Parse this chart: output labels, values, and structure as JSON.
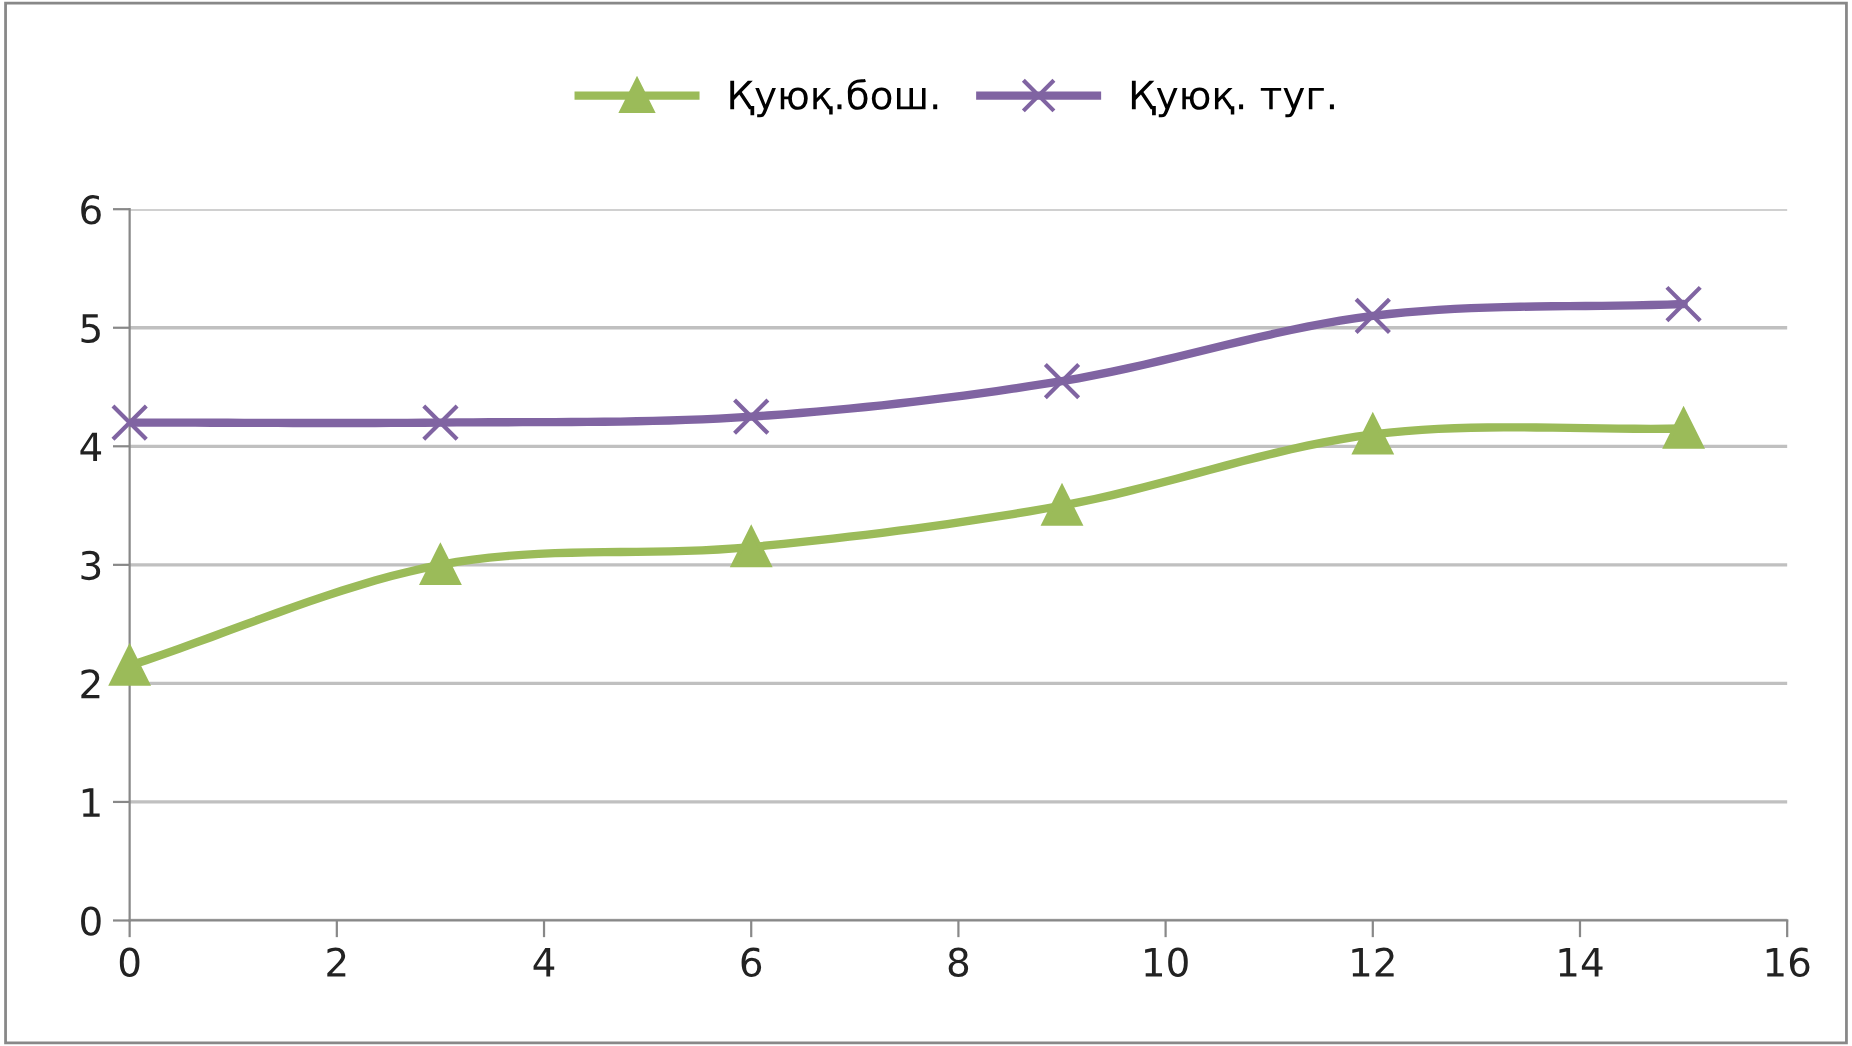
{
  "chart_data": {
    "type": "line",
    "x": [
      0,
      3,
      6,
      9,
      12,
      15
    ],
    "series": [
      {
        "name": "Қуюқ.бош.",
        "color": "#9bbb59",
        "values": [
          2.15,
          3.0,
          3.15,
          3.5,
          4.1,
          4.15
        ],
        "marker": "triangle"
      },
      {
        "name": "Қуюқ. туг.",
        "color": "#8064a2",
        "values": [
          4.2,
          4.2,
          4.25,
          4.55,
          5.1,
          5.2
        ],
        "marker": "cross"
      }
    ],
    "xlim": [
      0,
      16
    ],
    "xticks": [
      0,
      2,
      4,
      6,
      8,
      10,
      12,
      14,
      16
    ],
    "ylim": [
      0,
      6
    ],
    "yticks": [
      0,
      1,
      2,
      3,
      4,
      5,
      6
    ],
    "grid": "y",
    "legend": "top",
    "line_style": "solid"
  }
}
